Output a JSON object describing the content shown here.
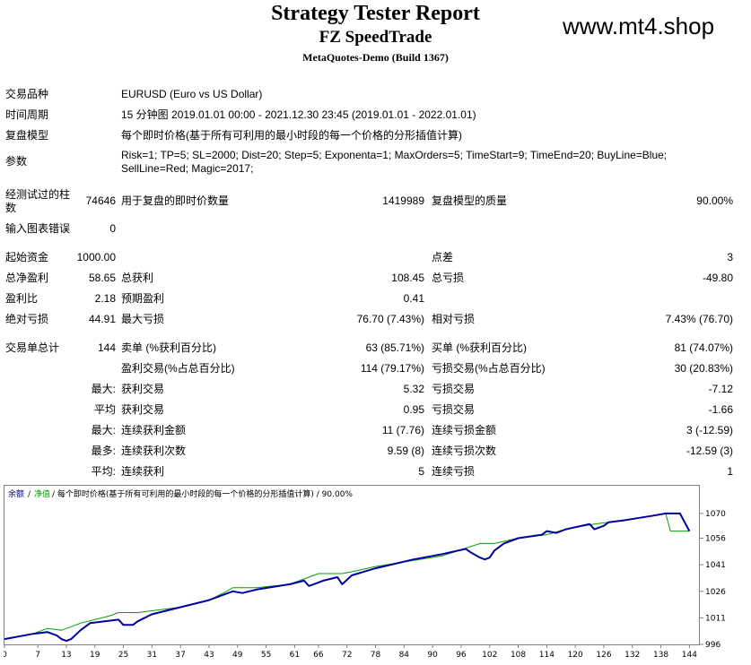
{
  "header": {
    "title": "Strategy Tester Report",
    "ea_name": "FZ SpeedTrade",
    "build": "MetaQuotes-Demo (Build 1367)",
    "site": "www.mt4.shop"
  },
  "info": {
    "symbol_label": "交易品种",
    "symbol": "EURUSD (Euro vs US Dollar)",
    "period_label": "时间周期",
    "period": "15 分钟图 2019.01.01 00:00 - 2021.12.30 23:45 (2019.01.01 - 2022.01.01)",
    "model_label": "复盘模型",
    "model": "每个即时价格(基于所有可利用的最小时段的每一个价格的分形插值计算)",
    "params_label": "参数",
    "params": "Risk=1; TP=5; SL=2000; Dist=20; Step=5; Exponenta=1; MaxOrders=5; TimeStart=9; TimeEnd=20; BuyLine=Blue; SellLine=Red; Magic=2017;"
  },
  "bars": {
    "bars_label": "经测试过的柱数",
    "bars": "74646",
    "ticks_label": "用于复盘的即时价数量",
    "ticks": "1419989",
    "quality_label": "复盘模型的质量",
    "quality": "90.00%",
    "errors_label": "输入图表错误",
    "errors": "0"
  },
  "stats": {
    "deposit_label": "起始资金",
    "deposit": "1000.00",
    "spread_label": "点差",
    "spread": "3",
    "net_label": "总净盈利",
    "net": "58.65",
    "gross_profit_label": "总获利",
    "gross_profit": "108.45",
    "gross_loss_label": "总亏损",
    "gross_loss": "-49.80",
    "pf_label": "盈利比",
    "pf": "2.18",
    "payoff_label": "预期盈利",
    "payoff": "0.41",
    "abs_dd_label": "绝对亏损",
    "abs_dd": "44.91",
    "max_dd_label": "最大亏损",
    "max_dd": "76.70 (7.43%)",
    "rel_dd_label": "相对亏损",
    "rel_dd": "7.43% (76.70)"
  },
  "trades": {
    "total_label": "交易单总计",
    "total": "144",
    "short_label": "卖单 (%获利百分比)",
    "short": "63 (85.71%)",
    "long_label": "买单 (%获利百分比)",
    "long": "81 (74.07%)",
    "win_label": "盈利交易(%占总百分比)",
    "win": "114 (79.17%)",
    "lose_label": "亏损交易(%占总百分比)",
    "lose": "30 (20.83%)",
    "max_label": "最大:",
    "max_win_label": "获利交易",
    "max_win": "5.32",
    "max_loss_label": "亏损交易",
    "max_loss": "-7.12",
    "avg_label": "平均",
    "avg_win_label": "获利交易",
    "avg_win": "0.95",
    "avg_loss_label": "亏损交易",
    "avg_loss": "-1.66",
    "cons_max_label": "最大:",
    "cons_win_money_label": "连续获利金额",
    "cons_win_money": "11 (7.76)",
    "cons_loss_money_label": "连续亏损金额",
    "cons_loss_money": "3 (-12.59)",
    "cons_most_label": "最多:",
    "cons_win_count_label": "连续获利次数",
    "cons_win_count": "9.59 (8)",
    "cons_loss_count_label": "连续亏损次数",
    "cons_loss_count": "-12.59 (3)",
    "cons_avg_label": "平均:",
    "cons_avg_win_label": "连续获利",
    "cons_avg_win": "5",
    "cons_avg_loss_label": "连续亏损",
    "cons_avg_loss": "1"
  },
  "chart_data": {
    "type": "line",
    "legend_balance": "余额",
    "legend_equity": "净值",
    "legend_rest": "/ 每个即时价格(基于所有可利用的最小时段的每一个价格的分形插值计算) / 90.00%",
    "colors": {
      "balance": "#0000a0",
      "equity": "#00a000"
    },
    "x_ticks": [
      0,
      7,
      13,
      19,
      25,
      31,
      37,
      43,
      49,
      55,
      61,
      66,
      72,
      78,
      84,
      90,
      96,
      102,
      108,
      114,
      120,
      126,
      132,
      138,
      144
    ],
    "y_ticks": [
      996,
      1011,
      1026,
      1041,
      1056,
      1070
    ],
    "xlim": [
      0,
      146
    ],
    "ylim": [
      996,
      1075
    ],
    "series": [
      {
        "name": "余额",
        "x": [
          0,
          6,
          9,
          11,
          12,
          13,
          14,
          16,
          18,
          24,
          25,
          27,
          28,
          31,
          37,
          43,
          46,
          48,
          50,
          53,
          60,
          63,
          64,
          65,
          67,
          70,
          71,
          73,
          78,
          86,
          92,
          97,
          98,
          100,
          101,
          102,
          103,
          105,
          108,
          113,
          114,
          116,
          118,
          123,
          124,
          126,
          127,
          130,
          137,
          139,
          142,
          143,
          144
        ],
        "y": [
          999,
          1002,
          1003,
          1001,
          999,
          998,
          999,
          1004,
          1008,
          1010,
          1007,
          1007,
          1009,
          1013,
          1017,
          1021,
          1024,
          1026,
          1025,
          1027,
          1030,
          1032,
          1029,
          1030,
          1032,
          1034,
          1030,
          1035,
          1039,
          1044,
          1047,
          1050,
          1048,
          1045,
          1044,
          1045,
          1049,
          1053,
          1056,
          1058,
          1060,
          1059,
          1061,
          1064,
          1061,
          1063,
          1065,
          1066,
          1069,
          1070,
          1070,
          1065,
          1060
        ]
      },
      {
        "name": "净值",
        "x": [
          0,
          6,
          9,
          12,
          14,
          16,
          22,
          24,
          28,
          31,
          37,
          43,
          46,
          48,
          53,
          60,
          64,
          66,
          71,
          73,
          78,
          92,
          100,
          103,
          108,
          114,
          118,
          124,
          127,
          137,
          139,
          140,
          144
        ],
        "y": [
          999,
          1002,
          1005,
          1004,
          1006,
          1008,
          1012,
          1014,
          1014,
          1015,
          1017,
          1021,
          1025,
          1028,
          1028,
          1030,
          1034,
          1036,
          1036,
          1037,
          1040,
          1046,
          1053,
          1053,
          1056,
          1058,
          1061,
          1064,
          1065,
          1069,
          1070,
          1060,
          1060
        ]
      }
    ]
  }
}
